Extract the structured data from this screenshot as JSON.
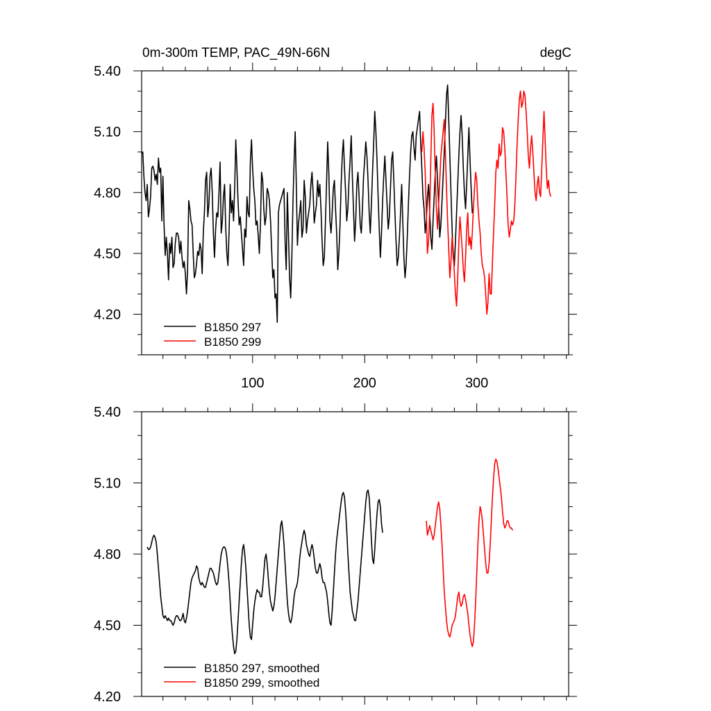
{
  "title_left": "0m-300m TEMP, PAC_49N-66N",
  "title_right": "degC",
  "chart_data": [
    {
      "type": "line",
      "title": "0m-300m TEMP, PAC_49N-66N",
      "units": "degC",
      "xlabel": "",
      "ylabel": "",
      "xlim": [
        1,
        382
      ],
      "ylim": [
        4.0,
        5.4
      ],
      "yticks": [
        4.2,
        4.5,
        4.8,
        5.1,
        5.4
      ],
      "ytick_labels": [
        "4.20",
        "4.50",
        "4.80",
        "5.10",
        "5.40"
      ],
      "xticks": [
        100,
        200,
        300
      ],
      "xtick_labels": [
        "100",
        "200",
        "300"
      ],
      "legend": [
        "B1850 297",
        "B1850 299"
      ],
      "legend_position": "bottom-left",
      "series": [
        {
          "name": "B1850 297",
          "color": "#000000",
          "x_start": 1,
          "values": [
            4.99,
            5.0,
            4.88,
            4.8,
            4.76,
            4.84,
            4.68,
            4.72,
            4.78,
            4.92,
            4.93,
            4.91,
            4.86,
            4.89,
            4.84,
            4.97,
            4.9,
            4.92,
            4.66,
            4.88,
            4.64,
            4.49,
            4.58,
            4.5,
            4.37,
            4.55,
            4.5,
            4.58,
            4.43,
            4.45,
            4.55,
            4.6,
            4.6,
            4.58,
            4.5,
            4.56,
            4.48,
            4.43,
            4.46,
            4.4,
            4.3,
            4.42,
            4.76,
            4.72,
            4.66,
            4.64,
            4.5,
            4.38,
            4.4,
            4.45,
            4.51,
            4.49,
            4.55,
            4.52,
            4.4,
            4.6,
            4.7,
            4.86,
            4.9,
            4.68,
            4.74,
            4.88,
            4.92,
            4.8,
            4.6,
            4.48,
            4.62,
            4.7,
            4.68,
            4.8,
            4.95,
            4.6,
            4.66,
            4.78,
            4.84,
            4.63,
            4.5,
            4.44,
            4.6,
            4.84,
            4.7,
            4.76,
            4.66,
            4.82,
            5.06,
            4.92,
            4.76,
            4.64,
            4.68,
            4.6,
            4.52,
            4.44,
            4.62,
            4.58,
            4.78,
            4.7,
            4.68,
            4.95,
            5.06,
            4.92,
            4.82,
            4.76,
            4.64,
            4.66,
            4.59,
            4.5,
            4.64,
            4.9,
            4.86,
            4.72,
            4.64,
            4.68,
            4.82,
            4.8,
            4.76,
            4.66,
            4.52,
            4.38,
            4.42,
            4.28,
            4.3,
            4.16,
            4.7,
            4.74,
            4.76,
            4.78,
            4.8,
            4.82,
            4.56,
            4.42,
            4.8,
            4.6,
            4.38,
            4.28,
            4.48,
            4.75,
            4.95,
            5.1,
            4.84,
            4.54,
            4.65,
            4.7,
            4.76,
            4.58,
            4.62,
            4.86,
            4.78,
            4.6,
            4.66,
            4.7,
            4.74,
            4.84,
            4.9,
            4.8,
            4.65,
            4.7,
            4.74,
            4.86,
            4.78,
            4.84,
            4.72,
            4.56,
            4.44,
            4.48,
            4.66,
            4.85,
            5.05,
            4.9,
            4.66,
            4.6,
            4.7,
            4.82,
            4.86,
            4.72,
            4.6,
            4.42,
            4.5,
            4.64,
            4.84,
            4.98,
            5.06,
            4.92,
            4.8,
            4.66,
            4.72,
            4.86,
            4.96,
            5.08,
            4.88,
            4.72,
            4.56,
            4.66,
            4.84,
            4.9,
            4.78,
            4.64,
            4.6,
            4.72,
            4.88,
            4.96,
            5.05,
            4.98,
            4.86,
            4.7,
            4.6,
            4.74,
            4.9,
            5.04,
            5.2,
            5.1,
            4.96,
            4.78,
            4.62,
            4.48,
            4.6,
            4.76,
            4.88,
            4.98,
            4.86,
            4.74,
            4.62,
            4.68,
            4.82,
            4.96,
            5.0,
            4.86,
            4.7,
            4.56,
            4.44,
            4.48,
            4.58,
            4.7,
            4.84,
            4.66,
            4.48,
            4.38,
            4.45,
            4.58,
            4.74,
            4.88,
            5.0,
            5.08,
            5.1,
            5.02,
            4.96,
            5.08,
            5.12,
            5.16,
            5.2,
            5.04,
            4.92,
            4.78,
            4.72,
            4.6,
            4.66,
            4.78,
            4.84,
            4.7,
            4.58,
            4.52,
            4.66,
            4.78,
            4.9,
            4.98,
            4.86,
            4.74,
            4.58,
            4.64,
            4.76,
            4.88,
            5.0,
            5.14,
            5.28,
            5.33,
            5.16,
            4.98,
            4.8,
            4.62,
            4.48,
            4.44,
            4.56,
            4.7,
            4.84,
            4.98,
            5.1,
            5.18,
            5.08,
            4.92,
            4.8,
            4.72,
            4.84,
            4.98,
            5.12,
            4.96,
            4.82,
            4.7,
            4.72
          ]
        },
        {
          "name": "B1850 299",
          "color": "#ff0000",
          "x_start": 251,
          "values": [
            5.0,
            5.1,
            5.02,
            4.9,
            4.7,
            4.5,
            4.56,
            4.7,
            4.96,
            5.18,
            5.24,
            5.1,
            4.88,
            4.72,
            4.62,
            4.74,
            4.86,
            4.98,
            5.04,
            5.1,
            5.16,
            5.0,
            4.82,
            4.66,
            4.52,
            4.38,
            4.46,
            4.58,
            4.52,
            4.4,
            4.3,
            4.24,
            4.38,
            4.55,
            4.68,
            4.6,
            4.52,
            4.42,
            4.36,
            4.48,
            4.62,
            4.7,
            4.54,
            4.58,
            4.52,
            4.6,
            4.72,
            4.82,
            4.9,
            4.86,
            4.74,
            4.66,
            4.6,
            4.5,
            4.44,
            4.42,
            4.38,
            4.3,
            4.2,
            4.26,
            4.4,
            4.3,
            4.3,
            4.46,
            4.6,
            4.74,
            4.9,
            4.96,
            4.92,
            5.04,
            4.98,
            5.0,
            5.12,
            5.1,
            5.02,
            4.9,
            4.78,
            4.64,
            4.58,
            4.62,
            4.66,
            4.64,
            4.66,
            4.74,
            4.88,
            5.04,
            5.16,
            5.26,
            5.3,
            5.22,
            5.24,
            5.3,
            5.28,
            5.2,
            5.1,
            4.98,
            4.92,
            5.02,
            5.08,
            5.0,
            4.9,
            4.8,
            4.76,
            4.84,
            4.88,
            4.8,
            4.78,
            4.92,
            5.06,
            5.2,
            5.06,
            4.92,
            4.82,
            4.86,
            4.8,
            4.78
          ]
        }
      ]
    },
    {
      "type": "line",
      "title": "",
      "xlabel": "",
      "ylabel": "",
      "xlim": [
        1,
        382
      ],
      "ylim": [
        4.2,
        5.4
      ],
      "yticks": [
        4.2,
        4.5,
        4.8,
        5.1,
        5.4
      ],
      "ytick_labels": [
        "4.20",
        "4.50",
        "4.80",
        "5.10",
        "5.40"
      ],
      "xticks": [
        100,
        200,
        300
      ],
      "xtick_labels": [],
      "legend": [
        "B1850 297, smoothed",
        "B1850 299, smoothed"
      ],
      "legend_position": "bottom-left",
      "series": [
        {
          "name": "B1850 297, smoothed",
          "color": "#000000",
          "x_start": 6,
          "values": [
            4.83,
            4.82,
            4.82,
            4.83,
            4.85,
            4.87,
            4.88,
            4.87,
            4.85,
            4.8,
            4.74,
            4.68,
            4.62,
            4.58,
            4.54,
            4.53,
            4.54,
            4.53,
            4.52,
            4.53,
            4.52,
            4.52,
            4.51,
            4.5,
            4.51,
            4.53,
            4.54,
            4.54,
            4.53,
            4.52,
            4.52,
            4.53,
            4.55,
            4.52,
            4.51,
            4.53,
            4.56,
            4.6,
            4.64,
            4.68,
            4.7,
            4.71,
            4.72,
            4.73,
            4.75,
            4.74,
            4.7,
            4.68,
            4.67,
            4.68,
            4.67,
            4.66,
            4.66,
            4.68,
            4.7,
            4.72,
            4.74,
            4.74,
            4.73,
            4.72,
            4.7,
            4.68,
            4.67,
            4.68,
            4.72,
            4.76,
            4.8,
            4.82,
            4.83,
            4.83,
            4.82,
            4.79,
            4.74,
            4.68,
            4.6,
            4.52,
            4.46,
            4.41,
            4.38,
            4.39,
            4.44,
            4.52,
            4.6,
            4.68,
            4.76,
            4.82,
            4.84,
            4.8,
            4.74,
            4.66,
            4.58,
            4.5,
            4.45,
            4.44,
            4.5,
            4.56,
            4.6,
            4.63,
            4.65,
            4.64,
            4.64,
            4.62,
            4.62,
            4.66,
            4.72,
            4.78,
            4.8,
            4.76,
            4.7,
            4.64,
            4.6,
            4.58,
            4.56,
            4.58,
            4.62,
            4.68,
            4.74,
            4.8,
            4.86,
            4.92,
            4.94,
            4.9,
            4.84,
            4.76,
            4.68,
            4.6,
            4.55,
            4.52,
            4.51,
            4.53,
            4.57,
            4.62,
            4.65,
            4.66,
            4.68,
            4.72,
            4.78,
            4.82,
            4.85,
            4.88,
            4.9,
            4.88,
            4.84,
            4.82,
            4.8,
            4.79,
            4.82,
            4.84,
            4.82,
            4.78,
            4.74,
            4.72,
            4.72,
            4.74,
            4.76,
            4.74,
            4.7,
            4.68,
            4.68,
            4.66,
            4.64,
            4.6,
            4.55,
            4.51,
            4.5,
            4.56,
            4.64,
            4.72,
            4.8,
            4.86,
            4.9,
            4.94,
            4.98,
            5.02,
            5.05,
            5.06,
            5.04,
            4.98,
            4.9,
            4.8,
            4.72,
            4.64,
            4.6,
            4.56,
            4.54,
            4.52,
            4.52,
            4.56,
            4.6,
            4.66,
            4.72,
            4.78,
            4.84,
            4.9,
            4.96,
            5.02,
            5.06,
            5.07,
            5.04,
            4.96,
            4.86,
            4.78,
            4.76,
            4.82,
            4.9,
            4.97,
            5.02,
            5.03,
            5.0,
            4.93,
            4.89
          ]
        },
        {
          "name": "B1850 299, smoothed",
          "color": "#ff0000",
          "x_start": 255,
          "values": [
            4.94,
            4.88,
            4.9,
            4.92,
            4.9,
            4.88,
            4.86,
            4.88,
            4.92,
            4.96,
            5.0,
            5.02,
            4.99,
            4.92,
            4.84,
            4.74,
            4.64,
            4.58,
            4.52,
            4.48,
            4.46,
            4.45,
            4.47,
            4.5,
            4.51,
            4.52,
            4.54,
            4.58,
            4.62,
            4.64,
            4.6,
            4.58,
            4.59,
            4.62,
            4.63,
            4.61,
            4.58,
            4.55,
            4.5,
            4.46,
            4.43,
            4.41,
            4.43,
            4.5,
            4.6,
            4.72,
            4.84,
            4.94,
            5.0,
            4.98,
            4.94,
            4.88,
            4.82,
            4.76,
            4.72,
            4.72,
            4.76,
            4.84,
            4.94,
            5.04,
            5.12,
            5.18,
            5.2,
            5.19,
            5.16,
            5.12,
            5.08,
            5.04,
            4.98,
            4.93,
            4.91,
            4.92,
            4.94,
            4.94,
            4.92,
            4.91,
            4.91,
            4.9
          ]
        }
      ]
    }
  ]
}
